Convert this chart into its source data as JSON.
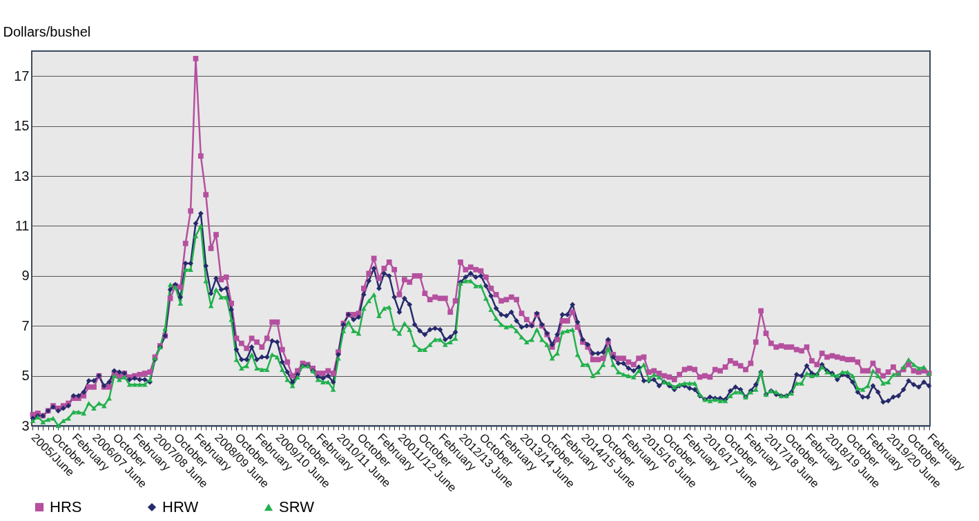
{
  "chart_data": {
    "type": "line",
    "ylabel": "Dollars/bushel",
    "ylim": [
      3,
      18
    ],
    "yticks": [
      3,
      5,
      7,
      9,
      11,
      13,
      15,
      17
    ],
    "grid": "y",
    "legend": "bottom",
    "line_style": "solid",
    "categories": [
      "2005/June",
      null,
      null,
      null,
      "October",
      null,
      null,
      null,
      "February",
      null,
      null,
      null,
      "2006/07 June",
      null,
      null,
      null,
      "October",
      null,
      null,
      null,
      "February",
      null,
      null,
      null,
      "2007/08 June",
      null,
      null,
      null,
      "October",
      null,
      null,
      null,
      "February",
      null,
      null,
      null,
      "2008/09 June",
      null,
      null,
      null,
      "October",
      null,
      null,
      null,
      "February",
      null,
      null,
      null,
      "2009/10 June",
      null,
      null,
      null,
      "October",
      null,
      null,
      null,
      "February",
      null,
      null,
      null,
      "2010/11 June",
      null,
      null,
      null,
      "October",
      null,
      null,
      null,
      "February",
      null,
      null,
      null,
      "20011/12 June",
      null,
      null,
      null,
      "October",
      null,
      null,
      null,
      "February",
      null,
      null,
      null,
      "2012/13 June",
      null,
      null,
      null,
      "October",
      null,
      null,
      null,
      "February",
      null,
      null,
      null,
      "2013/14 June",
      null,
      null,
      null,
      "October",
      null,
      null,
      null,
      "February",
      null,
      null,
      null,
      "2014/15 June",
      null,
      null,
      null,
      "October",
      null,
      null,
      null,
      "February",
      null,
      null,
      null,
      "2015/16 June",
      null,
      null,
      null,
      "October",
      null,
      null,
      null,
      "February",
      null,
      null,
      null,
      "2016/17 June",
      null,
      null,
      null,
      "October",
      null,
      null,
      null,
      "February",
      null,
      null,
      null,
      "2017/18 June",
      null,
      null,
      null,
      "October",
      null,
      null,
      null,
      "February",
      null,
      null,
      null,
      "2018/19 June",
      null,
      null,
      null,
      "October",
      null,
      null,
      null,
      "February",
      null,
      null,
      null,
      "2019/20 June",
      null,
      null,
      null,
      "October",
      null,
      null,
      null,
      "February"
    ],
    "series": [
      {
        "name": "HRS",
        "color": "#b5509f",
        "marker": "square",
        "values": [
          3.45,
          3.5,
          3.4,
          3.6,
          3.8,
          3.7,
          3.8,
          3.9,
          4.1,
          4.1,
          4.2,
          4.55,
          4.55,
          5.0,
          4.55,
          4.55,
          5.1,
          5.0,
          5.1,
          4.95,
          5.0,
          5.05,
          5.1,
          5.15,
          5.75,
          6.2,
          6.6,
          8.1,
          8.6,
          8.55,
          10.3,
          11.6,
          17.7,
          13.8,
          12.25,
          10.1,
          10.65,
          8.85,
          8.95,
          7.9,
          6.5,
          6.3,
          6.1,
          6.5,
          6.35,
          6.15,
          6.5,
          7.15,
          7.15,
          6.05,
          5.55,
          5.0,
          5.2,
          5.5,
          5.45,
          5.3,
          5.1,
          5.1,
          5.2,
          5.1,
          5.95,
          7.1,
          7.45,
          7.45,
          7.5,
          8.5,
          9.1,
          9.7,
          8.9,
          9.3,
          9.55,
          9.25,
          8.25,
          8.85,
          8.75,
          9.0,
          9.0,
          8.3,
          8.05,
          8.15,
          8.1,
          8.1,
          7.55,
          8.0,
          9.55,
          9.25,
          9.35,
          9.25,
          9.2,
          8.95,
          8.5,
          8.25,
          8.0,
          8.05,
          8.15,
          8.05,
          7.5,
          7.25,
          7.05,
          7.45,
          7.0,
          6.65,
          6.15,
          6.45,
          7.2,
          7.2,
          7.55,
          6.95,
          6.35,
          6.15,
          5.65,
          5.65,
          5.7,
          6.35,
          5.85,
          5.7,
          5.7,
          5.55,
          5.45,
          5.7,
          5.75,
          5.15,
          5.2,
          5.1,
          5.0,
          4.95,
          4.85,
          5.05,
          5.25,
          5.3,
          5.25,
          4.95,
          5.0,
          4.95,
          5.25,
          5.2,
          5.35,
          5.6,
          5.5,
          5.4,
          5.25,
          5.5,
          6.35,
          7.6,
          6.7,
          6.3,
          6.15,
          6.2,
          6.15,
          6.15,
          6.05,
          6.0,
          6.15,
          5.6,
          5.45,
          5.9,
          5.75,
          5.8,
          5.75,
          5.7,
          5.65,
          5.65,
          5.55,
          5.2,
          5.2,
          5.5,
          5.2,
          5.0,
          5.15,
          5.35,
          5.1,
          5.25,
          5.45,
          5.2,
          5.15,
          5.2,
          5.1
        ]
      },
      {
        "name": "HRW",
        "color": "#262a6b",
        "marker": "diamond",
        "values": [
          3.3,
          3.4,
          3.4,
          3.6,
          3.75,
          3.6,
          3.7,
          3.8,
          4.2,
          4.2,
          4.35,
          4.8,
          4.8,
          5.0,
          4.6,
          4.75,
          5.2,
          5.15,
          5.1,
          4.85,
          4.9,
          4.85,
          4.85,
          4.75,
          5.65,
          6.15,
          6.6,
          8.45,
          8.65,
          8.15,
          9.5,
          9.5,
          11.1,
          11.5,
          9.4,
          8.3,
          8.9,
          8.45,
          8.5,
          7.65,
          6.05,
          5.65,
          5.65,
          6.15,
          5.65,
          5.75,
          5.75,
          6.4,
          6.35,
          5.55,
          5.15,
          4.75,
          5.05,
          5.4,
          5.4,
          5.2,
          4.95,
          4.9,
          5.0,
          4.75,
          5.85,
          7.05,
          7.45,
          7.25,
          7.35,
          8.25,
          8.8,
          9.3,
          8.5,
          9.1,
          9.0,
          8.15,
          7.55,
          8.1,
          7.85,
          7.05,
          6.8,
          6.65,
          6.85,
          6.9,
          6.85,
          6.45,
          6.55,
          6.75,
          8.75,
          8.95,
          9.1,
          8.95,
          9.0,
          8.6,
          8.2,
          7.7,
          7.45,
          7.4,
          7.55,
          7.2,
          6.95,
          7.0,
          7.0,
          7.5,
          7.05,
          6.7,
          6.25,
          6.65,
          7.45,
          7.45,
          7.85,
          7.15,
          6.45,
          6.25,
          5.9,
          5.9,
          5.95,
          6.45,
          5.75,
          5.5,
          5.5,
          5.3,
          5.2,
          5.35,
          4.8,
          4.8,
          4.85,
          4.6,
          4.75,
          4.6,
          4.45,
          4.6,
          4.6,
          4.5,
          4.45,
          4.2,
          4.05,
          4.15,
          4.1,
          4.1,
          4.05,
          4.4,
          4.55,
          4.45,
          4.15,
          4.4,
          4.65,
          5.15,
          4.25,
          4.4,
          4.25,
          4.2,
          4.2,
          4.35,
          5.05,
          5.0,
          5.4,
          5.1,
          5.05,
          5.45,
          5.2,
          5.1,
          4.85,
          5.05,
          5.0,
          4.75,
          4.35,
          4.15,
          4.15,
          4.6,
          4.35,
          3.95,
          4.0,
          4.15,
          4.2,
          4.45,
          4.8,
          4.65,
          4.55,
          4.75,
          4.6
        ]
      },
      {
        "name": "SRW",
        "color": "#22b14c",
        "marker": "triangle",
        "values": [
          3.2,
          3.35,
          3.15,
          3.25,
          3.3,
          3.0,
          3.2,
          3.3,
          3.55,
          3.55,
          3.5,
          3.9,
          3.7,
          3.9,
          3.8,
          4.1,
          5.0,
          4.85,
          4.95,
          4.65,
          4.65,
          4.65,
          4.65,
          4.85,
          5.7,
          6.15,
          6.9,
          8.65,
          8.55,
          7.9,
          9.25,
          9.25,
          10.6,
          11.0,
          8.8,
          7.8,
          8.45,
          8.15,
          8.15,
          7.25,
          5.65,
          5.3,
          5.4,
          5.85,
          5.3,
          5.25,
          5.25,
          5.85,
          5.75,
          5.25,
          4.85,
          4.6,
          4.95,
          5.4,
          5.4,
          5.2,
          4.85,
          4.75,
          4.75,
          4.45,
          5.7,
          6.8,
          7.15,
          6.8,
          6.7,
          7.7,
          8.0,
          8.25,
          7.4,
          7.7,
          7.75,
          6.9,
          6.7,
          7.1,
          6.85,
          6.25,
          6.05,
          6.05,
          6.25,
          6.45,
          6.45,
          6.25,
          6.35,
          6.5,
          8.7,
          8.8,
          8.8,
          8.6,
          8.6,
          8.1,
          7.65,
          7.3,
          7.05,
          6.95,
          7.0,
          6.8,
          6.55,
          6.35,
          6.45,
          6.85,
          6.45,
          6.25,
          5.7,
          5.9,
          6.75,
          6.8,
          6.85,
          5.85,
          5.45,
          5.45,
          5.0,
          5.15,
          5.45,
          6.1,
          5.45,
          5.15,
          5.05,
          5.0,
          4.95,
          5.2,
          5.45,
          4.85,
          5.05,
          4.95,
          4.75,
          4.7,
          4.55,
          4.65,
          4.7,
          4.7,
          4.7,
          4.25,
          4.05,
          4.0,
          4.05,
          4.0,
          4.0,
          4.2,
          4.35,
          4.35,
          4.15,
          4.35,
          4.45,
          5.15,
          4.25,
          4.4,
          4.35,
          4.2,
          4.2,
          4.3,
          4.7,
          4.7,
          5.1,
          5.0,
          5.05,
          5.35,
          5.15,
          5.05,
          5.0,
          5.15,
          5.15,
          5.0,
          4.5,
          4.45,
          4.6,
          5.2,
          5.0,
          4.7,
          4.75,
          5.05,
          5.1,
          5.35,
          5.65,
          5.45,
          5.3,
          5.35,
          5.1
        ]
      }
    ]
  }
}
